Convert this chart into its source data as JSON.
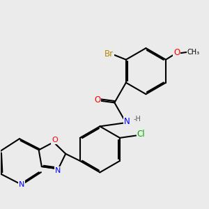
{
  "background_color": "#ebebeb",
  "bond_color": "#000000",
  "bond_width": 1.5,
  "atom_colors": {
    "Br": "#b8860b",
    "O": "#ff0000",
    "N": "#0000ff",
    "Cl": "#00aa00",
    "C": "#000000",
    "H": "#444444"
  },
  "font_size": 8.5,
  "title": ""
}
